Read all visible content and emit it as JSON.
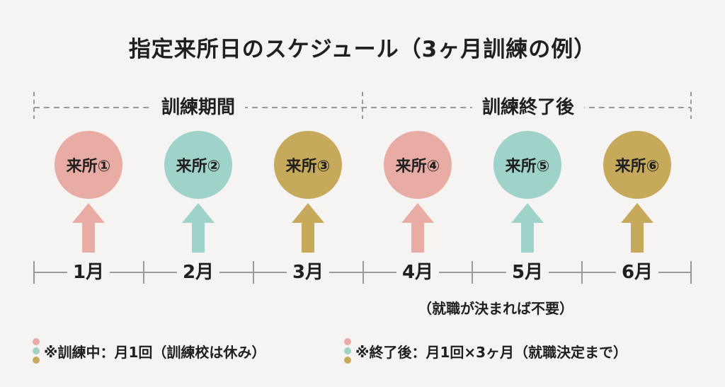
{
  "title": "指定来所日のスケジュール（3ヶ月訓練の例）",
  "periods": [
    {
      "label": "訓練期間"
    },
    {
      "label": "訓練終了後"
    }
  ],
  "visits": [
    {
      "label": "来所①",
      "month": "1月",
      "color": "#e8aca4"
    },
    {
      "label": "来所②",
      "month": "2月",
      "color": "#9fd2c9"
    },
    {
      "label": "来所③",
      "month": "3月",
      "color": "#c6a95b"
    },
    {
      "label": "来所④",
      "month": "4月",
      "color": "#e8aca4"
    },
    {
      "label": "来所⑤",
      "month": "5月",
      "color": "#9fd2c9"
    },
    {
      "label": "来所⑥",
      "month": "6月",
      "color": "#c6a95b"
    }
  ],
  "note": "（就職が決まれば不要）",
  "legend": [
    {
      "text": "※訓練中：月1回（訓練校は休み）"
    },
    {
      "text": "※終了後：月1回×3ヶ月（就職決定まで）"
    }
  ],
  "colors": {
    "pink": "#e8aca4",
    "teal": "#9fd2c9",
    "gold": "#c6a95b",
    "line": "#9a9a9a"
  }
}
